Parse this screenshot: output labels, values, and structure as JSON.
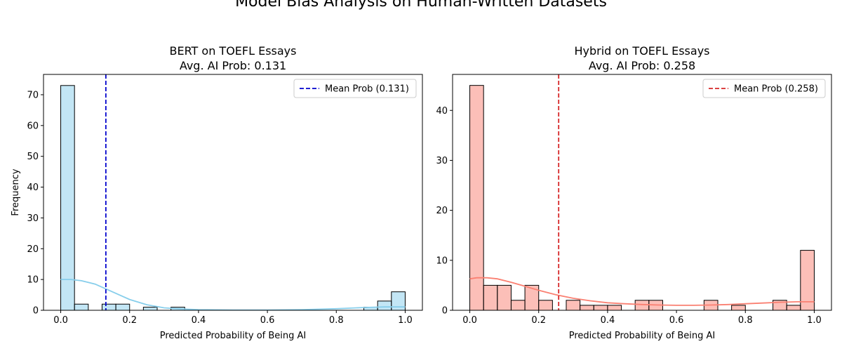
{
  "suptitle": "Model Bias Analysis on Human-Written Datasets",
  "chart_data": [
    {
      "type": "histogram",
      "title_line1": "BERT on TOEFL Essays",
      "title_line2": "Avg. AI Prob: 0.131",
      "xlabel": "Predicted Probability of Being AI",
      "ylabel": "Frequency",
      "xlim": [
        -0.05,
        1.05
      ],
      "ylim": [
        0,
        76.6
      ],
      "xticks": [
        0.0,
        0.2,
        0.4,
        0.6,
        0.8,
        1.0
      ],
      "xtick_labels": [
        "0.0",
        "0.2",
        "0.4",
        "0.6",
        "0.8",
        "1.0"
      ],
      "yticks": [
        0,
        10,
        20,
        30,
        40,
        50,
        60,
        70
      ],
      "ytick_labels": [
        "0",
        "10",
        "20",
        "30",
        "40",
        "50",
        "60",
        "70"
      ],
      "bins": [
        {
          "x0": 0.0,
          "x1": 0.04,
          "count": 73
        },
        {
          "x0": 0.04,
          "x1": 0.08,
          "count": 2
        },
        {
          "x0": 0.08,
          "x1": 0.12,
          "count": 0
        },
        {
          "x0": 0.12,
          "x1": 0.16,
          "count": 2
        },
        {
          "x0": 0.16,
          "x1": 0.2,
          "count": 2
        },
        {
          "x0": 0.2,
          "x1": 0.24,
          "count": 0
        },
        {
          "x0": 0.24,
          "x1": 0.28,
          "count": 1
        },
        {
          "x0": 0.28,
          "x1": 0.32,
          "count": 0
        },
        {
          "x0": 0.32,
          "x1": 0.36,
          "count": 1
        },
        {
          "x0": 0.88,
          "x1": 0.92,
          "count": 1
        },
        {
          "x0": 0.92,
          "x1": 0.96,
          "count": 3
        },
        {
          "x0": 0.96,
          "x1": 1.0,
          "count": 6
        }
      ],
      "kde": [
        [
          0.0,
          10.0
        ],
        [
          0.03,
          10.0
        ],
        [
          0.06,
          9.6
        ],
        [
          0.1,
          8.5
        ],
        [
          0.13,
          7.0
        ],
        [
          0.17,
          5.0
        ],
        [
          0.2,
          3.5
        ],
        [
          0.25,
          1.8
        ],
        [
          0.3,
          0.8
        ],
        [
          0.35,
          0.4
        ],
        [
          0.4,
          0.2
        ],
        [
          0.5,
          0.1
        ],
        [
          0.6,
          0.1
        ],
        [
          0.7,
          0.2
        ],
        [
          0.8,
          0.5
        ],
        [
          0.88,
          0.9
        ],
        [
          0.94,
          1.1
        ],
        [
          1.0,
          1.1
        ]
      ],
      "mean": 0.131,
      "mean_label": "Mean Prob (0.131)",
      "colors": {
        "fill": "#87ceeb",
        "kde": "#87ceeb",
        "mean_line": "#0000cd"
      }
    },
    {
      "type": "histogram",
      "title_line1": "Hybrid on TOEFL Essays",
      "title_line2": "Avg. AI Prob: 0.258",
      "xlabel": "Predicted Probability of Being AI",
      "ylabel": "",
      "xlim": [
        -0.05,
        1.05
      ],
      "ylim": [
        0,
        47.2
      ],
      "xticks": [
        0.0,
        0.2,
        0.4,
        0.6,
        0.8,
        1.0
      ],
      "xtick_labels": [
        "0.0",
        "0.2",
        "0.4",
        "0.6",
        "0.8",
        "1.0"
      ],
      "yticks": [
        0,
        10,
        20,
        30,
        40
      ],
      "ytick_labels": [
        "0",
        "10",
        "20",
        "30",
        "40"
      ],
      "bins": [
        {
          "x0": 0.0,
          "x1": 0.04,
          "count": 45
        },
        {
          "x0": 0.04,
          "x1": 0.08,
          "count": 5
        },
        {
          "x0": 0.08,
          "x1": 0.12,
          "count": 5
        },
        {
          "x0": 0.12,
          "x1": 0.16,
          "count": 2
        },
        {
          "x0": 0.16,
          "x1": 0.2,
          "count": 5
        },
        {
          "x0": 0.2,
          "x1": 0.24,
          "count": 2
        },
        {
          "x0": 0.28,
          "x1": 0.32,
          "count": 2
        },
        {
          "x0": 0.32,
          "x1": 0.36,
          "count": 1
        },
        {
          "x0": 0.36,
          "x1": 0.4,
          "count": 1
        },
        {
          "x0": 0.4,
          "x1": 0.44,
          "count": 1
        },
        {
          "x0": 0.48,
          "x1": 0.52,
          "count": 2
        },
        {
          "x0": 0.52,
          "x1": 0.56,
          "count": 2
        },
        {
          "x0": 0.68,
          "x1": 0.72,
          "count": 2
        },
        {
          "x0": 0.76,
          "x1": 0.8,
          "count": 1
        },
        {
          "x0": 0.88,
          "x1": 0.92,
          "count": 2
        },
        {
          "x0": 0.92,
          "x1": 0.96,
          "count": 1
        },
        {
          "x0": 0.96,
          "x1": 1.0,
          "count": 12
        }
      ],
      "kde": [
        [
          0.0,
          6.3
        ],
        [
          0.02,
          6.5
        ],
        [
          0.05,
          6.5
        ],
        [
          0.08,
          6.3
        ],
        [
          0.12,
          5.6
        ],
        [
          0.16,
          4.8
        ],
        [
          0.2,
          4.0
        ],
        [
          0.25,
          3.1
        ],
        [
          0.3,
          2.4
        ],
        [
          0.35,
          1.9
        ],
        [
          0.4,
          1.5
        ],
        [
          0.45,
          1.3
        ],
        [
          0.5,
          1.15
        ],
        [
          0.55,
          1.05
        ],
        [
          0.6,
          1.0
        ],
        [
          0.65,
          1.0
        ],
        [
          0.7,
          1.05
        ],
        [
          0.75,
          1.15
        ],
        [
          0.8,
          1.3
        ],
        [
          0.85,
          1.45
        ],
        [
          0.9,
          1.6
        ],
        [
          0.95,
          1.7
        ],
        [
          1.0,
          1.7
        ]
      ],
      "mean": 0.258,
      "mean_label": "Mean Prob (0.258)",
      "colors": {
        "fill": "#fa8072",
        "kde": "#fa8072",
        "mean_line": "#d62728"
      }
    }
  ]
}
